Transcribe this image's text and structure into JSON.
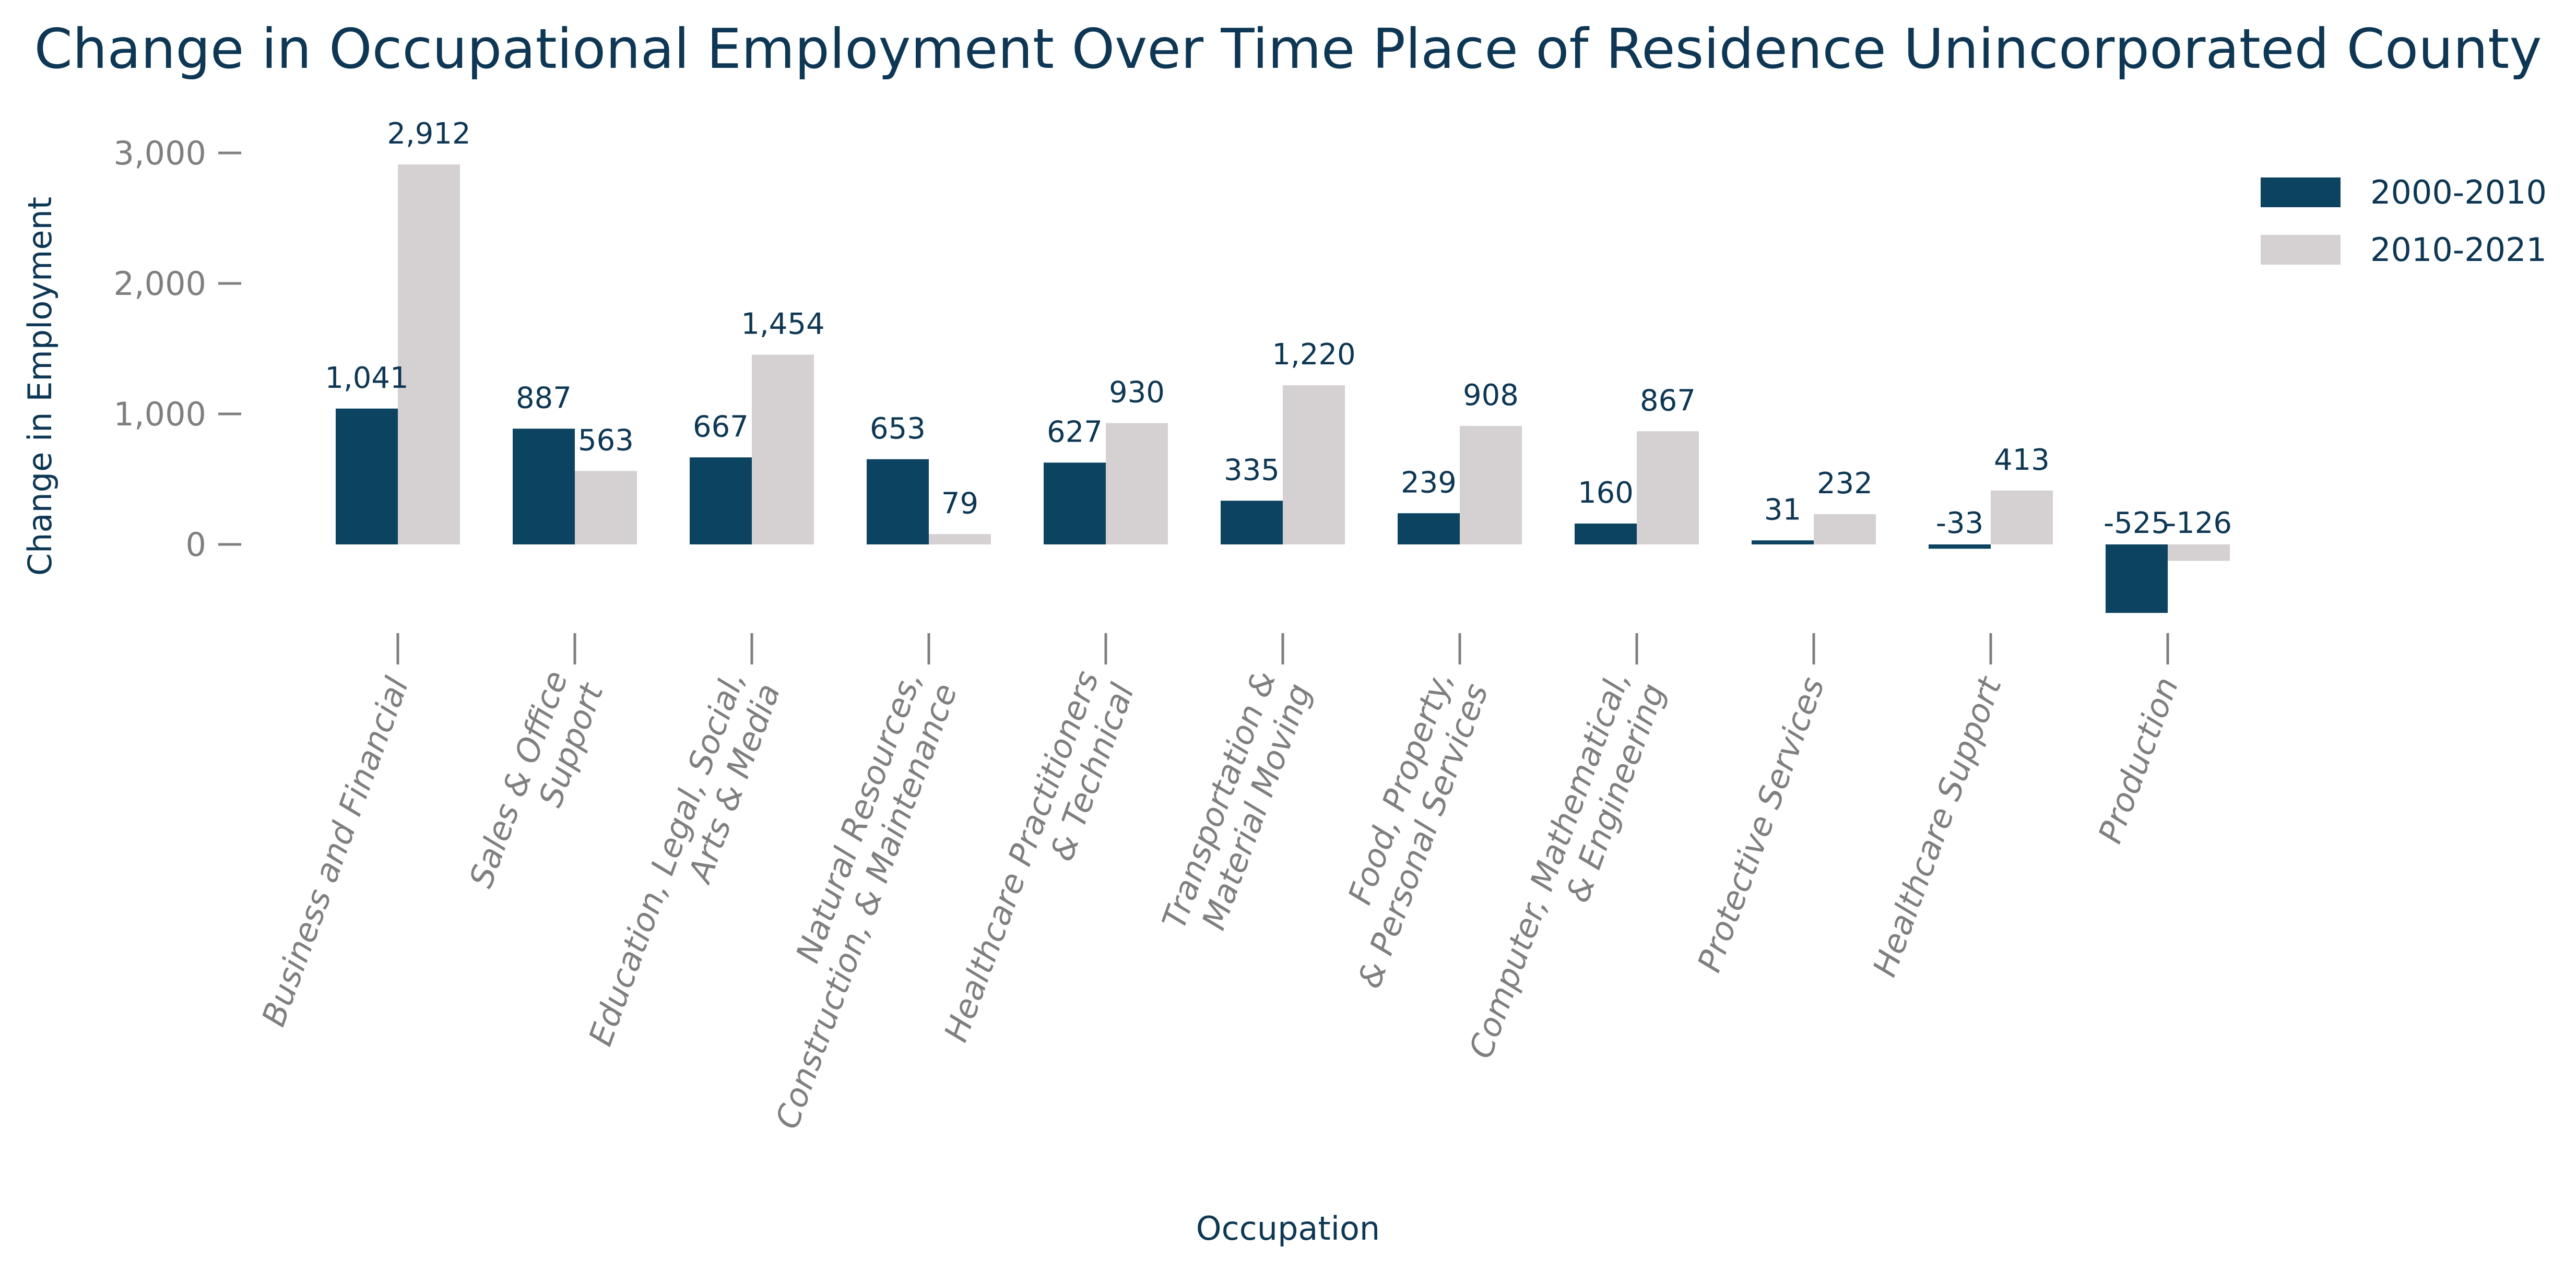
{
  "chart_data": {
    "type": "bar",
    "title": "Change in Occupational Employment Over Time Place of Residence Unincorporated County",
    "xlabel": "Occupation",
    "ylabel": "Change in Employment",
    "ylim": [
      -525,
      3000
    ],
    "yticks": [
      0,
      1000,
      2000,
      3000
    ],
    "ytick_labels": [
      "0",
      "1,000",
      "2,000",
      "3,000"
    ],
    "grid": false,
    "legend_position": "top-right",
    "categories": [
      [
        "Business and Financial"
      ],
      [
        "Sales & Office",
        "Support"
      ],
      [
        "Education, Legal, Social,",
        "Arts & Media"
      ],
      [
        "Natural Resources,",
        "Construction, & Maintenance"
      ],
      [
        "Healthcare Practitioners",
        "& Technical"
      ],
      [
        "Transportation &",
        "Material Moving"
      ],
      [
        "Food, Property,",
        "& Personal Services"
      ],
      [
        "Computer, Mathematical,",
        "& Engineering"
      ],
      [
        "Protective Services"
      ],
      [
        "Healthcare Support"
      ],
      [
        "Production"
      ]
    ],
    "series": [
      {
        "name": "2000-2010",
        "color": "#0b4360",
        "values": [
          1041,
          887,
          667,
          653,
          627,
          335,
          239,
          160,
          31,
          -33,
          -525
        ],
        "labels": [
          "1,041",
          "887",
          "667",
          "653",
          "627",
          "335",
          "239",
          "160",
          "31",
          "-33",
          "-525"
        ]
      },
      {
        "name": "2010-2021",
        "color": "#d5d0d2",
        "values": [
          2912,
          563,
          1454,
          79,
          930,
          1220,
          908,
          867,
          232,
          413,
          -126
        ],
        "labels": [
          "2,912",
          "563",
          "1,454",
          "79",
          "930",
          "1,220",
          "908",
          "867",
          "232",
          "413",
          "-126"
        ]
      }
    ]
  }
}
